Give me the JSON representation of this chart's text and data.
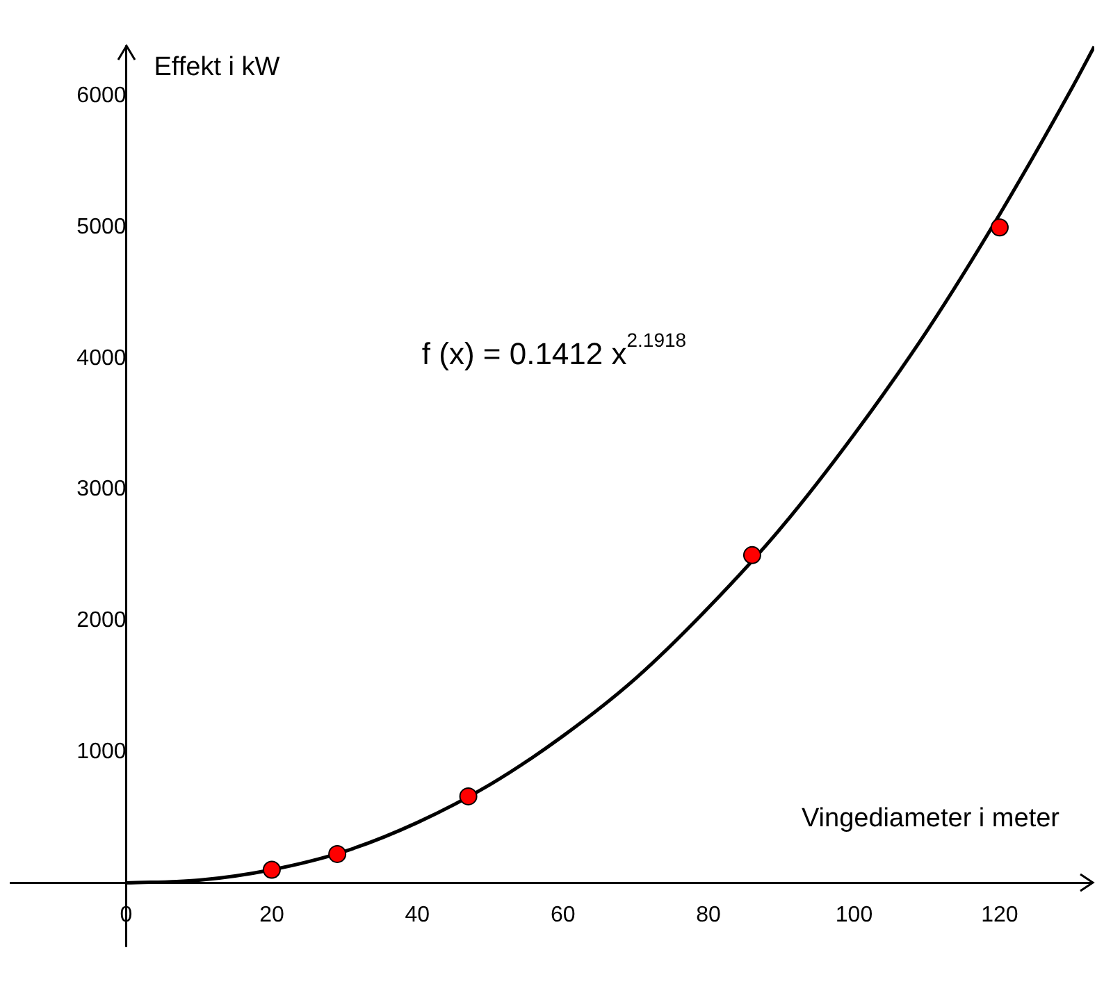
{
  "chart_data": {
    "type": "scatter",
    "xlabel": "Vingediameter i meter",
    "ylabel": "Effekt i kW",
    "annotations": [
      "f (x) = 0.1412 x$^{2.1918}$"
    ],
    "xlim": [
      -16,
      133
    ],
    "ylim": [
      -490,
      6400
    ],
    "xticks": [
      0,
      20,
      40,
      60,
      80,
      100,
      120
    ],
    "yticks": [
      1000,
      2000,
      3000,
      4000,
      5000,
      6000
    ],
    "grid": false,
    "legend": false,
    "series": [
      {
        "type": "line",
        "color": "#000000",
        "marker": "none",
        "line_style": "solid",
        "x": [
          0,
          10,
          20,
          30,
          40,
          50,
          60,
          70,
          80,
          90,
          100,
          110,
          120,
          130,
          133
        ],
        "values": [
          0,
          20,
          100,
          240,
          460,
          750,
          1120,
          1560,
          2100,
          2710,
          3420,
          4210,
          5100,
          6070,
          6380
        ]
      },
      {
        "type": "scatter",
        "color": "#ff0000",
        "marker": "circle",
        "x": [
          20,
          29,
          47,
          86,
          120
        ],
        "values": [
          100,
          220,
          660,
          2500,
          5000
        ]
      }
    ]
  }
}
